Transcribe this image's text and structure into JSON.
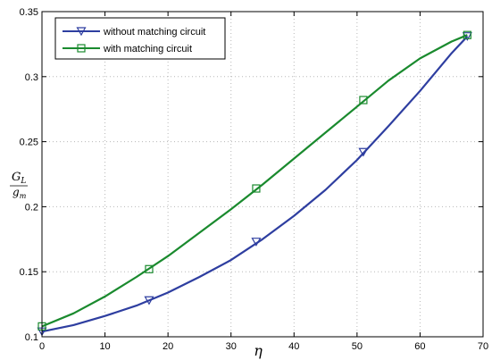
{
  "chart_data": {
    "type": "line",
    "xlabel": "η",
    "ylabel_numerator": "G",
    "ylabel_numerator_sub": "L",
    "ylabel_denominator": "g",
    "ylabel_denominator_sub": "m",
    "xlim": [
      0,
      70
    ],
    "ylim": [
      0.1,
      0.35
    ],
    "xticks": [
      0,
      10,
      20,
      30,
      40,
      50,
      60,
      70
    ],
    "yticks": [
      0.1,
      0.15,
      0.2,
      0.25,
      0.3,
      0.35
    ],
    "ytick_labels": [
      "0.1",
      "0.15",
      "0.2",
      "0.25",
      "0.3",
      "0.35"
    ],
    "grid": true,
    "legend_position": "top-left",
    "series": [
      {
        "name": "without matching circuit",
        "color": "#2e3ea0",
        "marker": "triangle-down",
        "x": [
          0,
          5,
          10,
          15,
          20,
          25,
          30,
          35,
          40,
          45,
          50,
          55,
          60,
          65,
          67.5
        ],
        "y": [
          0.104,
          0.109,
          0.116,
          0.124,
          0.134,
          0.146,
          0.159,
          0.175,
          0.193,
          0.213,
          0.236,
          0.262,
          0.289,
          0.318,
          0.331
        ],
        "marker_x": [
          0,
          17,
          34,
          51,
          67.5
        ],
        "marker_y": [
          0.104,
          0.128,
          0.173,
          0.242,
          0.331
        ]
      },
      {
        "name": "with matching circuit",
        "color": "#1a8a2e",
        "marker": "square",
        "x": [
          0,
          5,
          10,
          15,
          20,
          25,
          30,
          35,
          40,
          45,
          50,
          55,
          60,
          65,
          67.5
        ],
        "y": [
          0.108,
          0.118,
          0.131,
          0.146,
          0.162,
          0.18,
          0.198,
          0.217,
          0.237,
          0.257,
          0.277,
          0.297,
          0.314,
          0.327,
          0.332
        ],
        "marker_x": [
          0,
          17,
          34,
          51,
          67.5
        ],
        "marker_y": [
          0.108,
          0.152,
          0.214,
          0.282,
          0.332
        ]
      }
    ]
  }
}
